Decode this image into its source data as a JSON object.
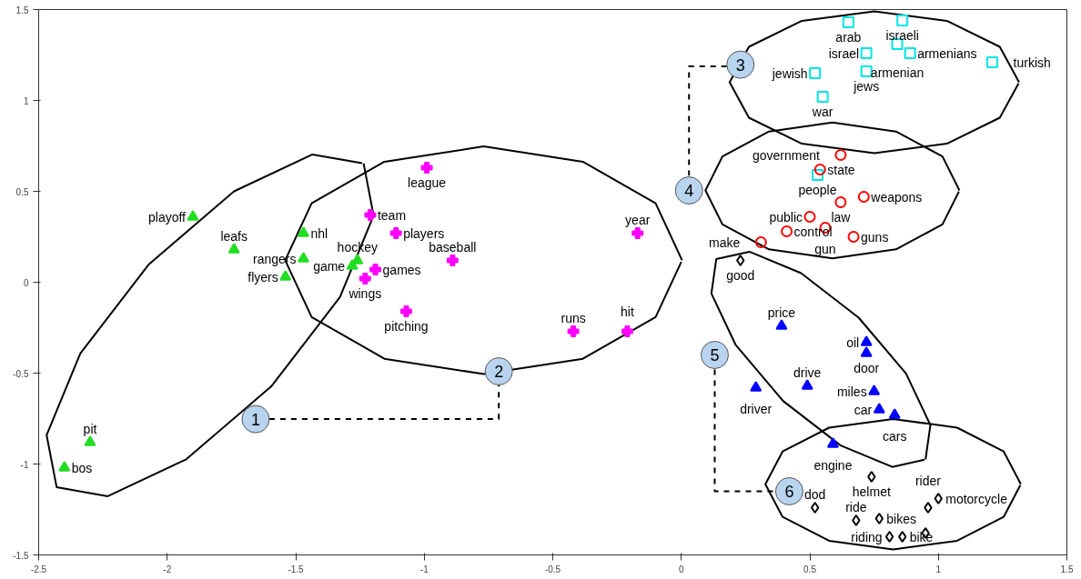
{
  "chart_data": {
    "type": "scatter",
    "xlim": [
      -2.5,
      1.5
    ],
    "ylim": [
      -1.5,
      1.5
    ],
    "xticks": [
      -2.5,
      -2,
      -1.5,
      -1,
      -0.5,
      0,
      0.5,
      1,
      1.5
    ],
    "yticks": [
      -1.5,
      -1,
      -0.5,
      0,
      0.5,
      1,
      1.5
    ],
    "grid": false,
    "series": [
      {
        "type": "line",
        "color": "#000000",
        "line_style": "solid",
        "x": [
          -1.236,
          -1.197,
          -1.328,
          -1.595,
          -1.926,
          -2.231,
          -2.43,
          -2.469,
          -2.338,
          -2.071,
          -1.74,
          -1.435,
          -1.242
        ],
        "values": [
          0.654,
          0.367,
          -0.082,
          -0.573,
          -0.974,
          -1.177,
          -1.128,
          -0.841,
          -0.392,
          0.099,
          0.5,
          0.703,
          0.655
        ]
      },
      {
        "type": "line",
        "color": "#000000",
        "line_style": "solid",
        "x": [
          0.003,
          -0.1,
          -0.383,
          -0.769,
          -1.155,
          -1.438,
          -1.541,
          -1.438,
          -1.155,
          -0.769,
          -0.383,
          -0.1,
          0.0
        ],
        "values": [
          0.121,
          0.434,
          0.663,
          0.747,
          0.663,
          0.434,
          0.121,
          -0.192,
          -0.421,
          -0.505,
          -0.421,
          -0.192,
          0.112
        ]
      },
      {
        "type": "line",
        "color": "#000000",
        "line_style": "solid",
        "x": [
          1.314,
          1.239,
          1.033,
          0.751,
          0.469,
          0.263,
          0.188,
          0.263,
          0.469,
          0.751,
          1.033,
          1.239,
          1.312
        ],
        "values": [
          1.1,
          1.295,
          1.438,
          1.49,
          1.438,
          1.295,
          1.1,
          0.905,
          0.762,
          0.71,
          0.762,
          0.905,
          1.094
        ]
      },
      {
        "type": "line",
        "color": "#000000",
        "line_style": "solid",
        "x": [
          1.082,
          1.016,
          0.835,
          0.588,
          0.341,
          0.16,
          0.094,
          0.16,
          0.341,
          0.588,
          0.835,
          1.016,
          1.08
        ],
        "values": [
          0.505,
          0.692,
          0.829,
          0.879,
          0.829,
          0.692,
          0.505,
          0.318,
          0.181,
          0.131,
          0.181,
          0.318,
          0.499
        ]
      },
      {
        "type": "line",
        "color": "#000000",
        "line_style": "solid",
        "x": [
          0.95,
          0.969,
          0.874,
          0.69,
          0.466,
          0.265,
          0.136,
          0.117,
          0.212,
          0.396,
          0.62,
          0.821,
          0.946
        ],
        "values": [
          -0.975,
          -0.786,
          -0.502,
          -0.195,
          0.05,
          0.168,
          0.127,
          -0.062,
          -0.346,
          -0.653,
          -0.898,
          -1.016,
          -0.976
        ]
      },
      {
        "type": "line",
        "color": "#000000",
        "line_style": "solid",
        "x": [
          1.321,
          1.254,
          1.073,
          0.824,
          0.575,
          0.394,
          0.327,
          0.394,
          0.575,
          0.824,
          1.073,
          1.254,
          1.319
        ],
        "values": [
          -1.111,
          -0.931,
          -0.8,
          -0.752,
          -0.8,
          -0.931,
          -1.111,
          -1.291,
          -1.422,
          -1.47,
          -1.422,
          -1.291,
          -1.116
        ]
      },
      {
        "type": "line",
        "color": "#000000",
        "line_style": "dashed",
        "x": [
          -1.603,
          -0.71,
          -0.71
        ],
        "values": [
          -0.753,
          -0.753,
          -0.566
        ]
      },
      {
        "type": "line",
        "color": "#000000",
        "line_style": "dashed",
        "x": [
          0.177,
          0.03,
          0.03
        ],
        "values": [
          1.187,
          1.187,
          0.586
        ]
      },
      {
        "type": "line",
        "color": "#000000",
        "line_style": "dashed",
        "x": [
          0.13,
          0.13,
          0.368
        ],
        "values": [
          -0.48,
          -1.15,
          -1.15
        ]
      },
      {
        "color": "#22dd22",
        "marker": "triangle",
        "x": [
          -1.9,
          -1.74,
          -1.47,
          -1.47,
          -1.54,
          -1.26,
          -1.28,
          -2.3,
          -2.4
        ],
        "values": [
          0.36,
          0.18,
          0.27,
          0.13,
          0.03,
          0.12,
          0.09,
          -0.88,
          -1.02
        ],
        "value_labels": [
          "playoff",
          "leafs",
          "nhl",
          "rangers",
          "flyers",
          "hockey",
          "game",
          "pit",
          "bos"
        ]
      },
      {
        "color": "#ff00ff",
        "marker": "cross",
        "x": [
          -0.99,
          -1.21,
          -1.11,
          -0.89,
          -0.17,
          -1.23,
          -1.19,
          -1.07,
          -0.42,
          -0.21
        ],
        "values": [
          0.63,
          0.37,
          0.27,
          0.12,
          0.27,
          0.02,
          0.07,
          -0.16,
          -0.27,
          -0.27
        ],
        "value_labels": [
          "league",
          "team",
          "players",
          "baseball",
          "year",
          "wings",
          "games",
          "pitching",
          "runs",
          "hit"
        ]
      },
      {
        "color": "#00e5e5",
        "marker": "square",
        "x": [
          0.65,
          0.86,
          0.72,
          0.84,
          0.89,
          1.21,
          0.52,
          0.72,
          0.55,
          0.53
        ],
        "values": [
          1.43,
          1.44,
          1.26,
          1.31,
          1.26,
          1.21,
          1.15,
          1.16,
          1.02,
          0.59
        ],
        "value_labels": [
          "arab",
          "israeli",
          "israel",
          "armenian",
          "armenians",
          "turkish",
          "jewish",
          "jews",
          "war",
          "people"
        ]
      },
      {
        "color": "#ff0000",
        "marker": "circle",
        "x": [
          0.62,
          0.54,
          0.71,
          0.62,
          0.5,
          0.41,
          0.31,
          0.56,
          0.67
        ],
        "values": [
          0.7,
          0.62,
          0.47,
          0.44,
          0.36,
          0.28,
          0.22,
          0.3,
          0.25
        ],
        "value_labels": [
          "government",
          "state",
          "weapons",
          "law",
          "public",
          "control",
          "make",
          "gun",
          "guns"
        ]
      },
      {
        "color": "#0000ff",
        "marker": "triangle",
        "x": [
          0.39,
          0.72,
          0.72,
          0.29,
          0.49,
          0.75,
          0.77,
          0.83,
          0.59
        ],
        "values": [
          -0.24,
          -0.33,
          -0.39,
          -0.58,
          -0.57,
          -0.6,
          -0.7,
          -0.73,
          -0.89
        ],
        "value_labels": [
          "price",
          "oil",
          "door",
          "driver",
          "drive",
          "miles",
          "car",
          "cars",
          "engine"
        ]
      },
      {
        "color": "#000000",
        "marker": "diamond",
        "x": [
          0.23,
          0.74,
          0.52,
          0.96,
          1.0,
          0.68,
          0.77,
          0.81,
          0.86,
          0.95
        ],
        "values": [
          0.12,
          -1.07,
          -1.24,
          -1.24,
          -1.19,
          -1.31,
          -1.3,
          -1.4,
          -1.4,
          -1.38
        ],
        "value_labels": [
          "good",
          "helmet",
          "dod",
          "rider",
          "motorcycle",
          "ride",
          "bikes",
          "riding",
          "bike",
          null
        ]
      }
    ],
    "annotations": [
      {
        "text": "1",
        "x": -1.656,
        "y": -0.753
      },
      {
        "text": "2",
        "x": -0.71,
        "y": -0.49
      },
      {
        "text": "3",
        "x": 0.23,
        "y": 1.197
      },
      {
        "text": "4",
        "x": 0.03,
        "y": 0.505
      },
      {
        "text": "5",
        "x": 0.13,
        "y": -0.4
      },
      {
        "text": "6",
        "x": 0.42,
        "y": -1.15
      }
    ]
  }
}
